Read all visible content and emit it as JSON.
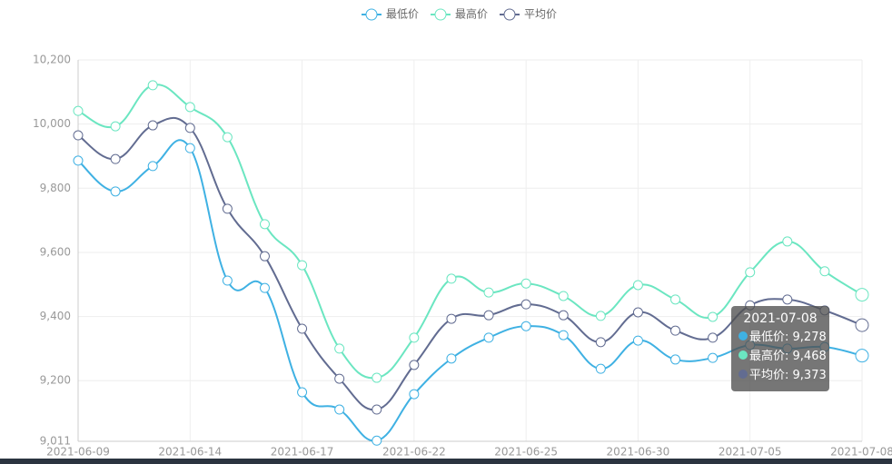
{
  "chart_data": {
    "type": "line",
    "categories": [
      "2021-06-09",
      null,
      null,
      "2021-06-14",
      null,
      null,
      "2021-06-17",
      null,
      null,
      "2021-06-22",
      null,
      null,
      "2021-06-25",
      null,
      null,
      "2021-06-30",
      null,
      null,
      "2021-07-05",
      null,
      null,
      "2021-07-08"
    ],
    "series": [
      {
        "name": "最低价",
        "color": "#3fb1e3",
        "values": [
          9886,
          9790,
          9869,
          9925,
          9512,
          9489,
          9164,
          9110,
          9013,
          9158,
          9269,
          9334,
          9370,
          9342,
          9237,
          9325,
          9266,
          9271,
          9311,
          9300,
          9305,
          9278
        ]
      },
      {
        "name": "最高价",
        "color": "#6be6c1",
        "values": [
          10041,
          9993,
          10121,
          10053,
          9959,
          9688,
          9560,
          9300,
          9209,
          9334,
          9518,
          9475,
          9503,
          9464,
          9402,
          9498,
          9453,
          9399,
          9538,
          9634,
          9541,
          9468
        ]
      },
      {
        "name": "平均价",
        "color": "#626c91",
        "values": [
          9965,
          9891,
          9996,
          9988,
          9736,
          9588,
          9362,
          9206,
          9110,
          9249,
          9393,
          9404,
          9438,
          9404,
          9320,
          9413,
          9356,
          9334,
          9435,
          9453,
          9419,
          9373
        ]
      }
    ],
    "ylim": [
      9011,
      10200
    ],
    "yticks": [
      {
        "value": 9011,
        "label": "9,011"
      },
      {
        "value": 9200,
        "label": "9,200"
      },
      {
        "value": 9400,
        "label": "9,400"
      },
      {
        "value": 9600,
        "label": "9,600"
      },
      {
        "value": 9800,
        "label": "9,800"
      },
      {
        "value": 10000,
        "label": "10,000"
      },
      {
        "value": 10200,
        "label": "10,200"
      }
    ],
    "grid": true,
    "smooth": true,
    "legend": "top",
    "tooltip_values": [
      "9,278",
      "9,468",
      "9,373"
    ]
  }
}
